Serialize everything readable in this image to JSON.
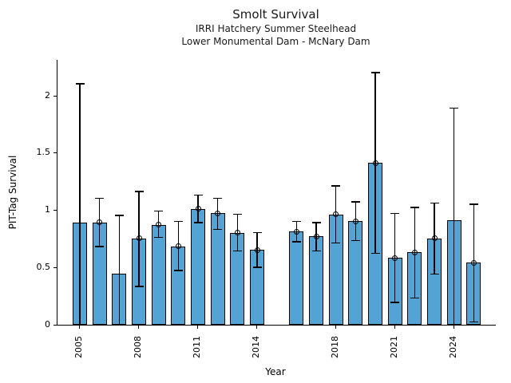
{
  "header": {
    "title": "Smolt Survival",
    "subtitle1": "IRRI Hatchery Summer Steelhead",
    "subtitle2": "Lower Monumental Dam - McNary Dam"
  },
  "chart_data": {
    "type": "bar",
    "title": "Smolt Survival",
    "subtitle": [
      "IRRI Hatchery Summer Steelhead",
      "Lower Monumental Dam - McNary Dam"
    ],
    "xlabel": "Year",
    "ylabel": "PIT-Tag Survival",
    "ylim": [
      0,
      2.31
    ],
    "xlim": [
      2003.9,
      2026.1
    ],
    "yticks": [
      0,
      0.5,
      1,
      1.5,
      2
    ],
    "ytick_labels": [
      "0",
      "0.5",
      "1",
      "1.5",
      "2"
    ],
    "xticks": [
      2005,
      2008,
      2011,
      2014,
      2018,
      2021,
      2024
    ],
    "grid": false,
    "legend": "none",
    "bar_color": "#54a3d5",
    "bar_edge_color": "#000000",
    "missing_years": [
      2015
    ],
    "series": [
      {
        "name": "PIT-Tag Survival",
        "points": [
          {
            "year": 2005,
            "value": 0.89,
            "err_low": 0.0,
            "err_high": 2.1,
            "marker": false
          },
          {
            "year": 2006,
            "value": 0.89,
            "err_low": 0.68,
            "err_high": 1.1,
            "marker": true
          },
          {
            "year": 2007,
            "value": 0.44,
            "err_low": 0.0,
            "err_high": 0.95,
            "marker": false
          },
          {
            "year": 2008,
            "value": 0.75,
            "err_low": 0.33,
            "err_high": 1.16,
            "marker": true
          },
          {
            "year": 2009,
            "value": 0.87,
            "err_low": 0.76,
            "err_high": 0.99,
            "marker": true
          },
          {
            "year": 2010,
            "value": 0.68,
            "err_low": 0.47,
            "err_high": 0.9,
            "marker": true
          },
          {
            "year": 2011,
            "value": 1.01,
            "err_low": 0.89,
            "err_high": 1.13,
            "marker": true
          },
          {
            "year": 2012,
            "value": 0.97,
            "err_low": 0.83,
            "err_high": 1.1,
            "marker": true
          },
          {
            "year": 2013,
            "value": 0.8,
            "err_low": 0.64,
            "err_high": 0.96,
            "marker": true
          },
          {
            "year": 2014,
            "value": 0.65,
            "err_low": 0.5,
            "err_high": 0.8,
            "marker": true
          },
          {
            "year": 2016,
            "value": 0.81,
            "err_low": 0.72,
            "err_high": 0.9,
            "marker": true
          },
          {
            "year": 2017,
            "value": 0.77,
            "err_low": 0.64,
            "err_high": 0.89,
            "marker": true
          },
          {
            "year": 2018,
            "value": 0.96,
            "err_low": 0.71,
            "err_high": 1.21,
            "marker": true
          },
          {
            "year": 2019,
            "value": 0.9,
            "err_low": 0.73,
            "err_high": 1.07,
            "marker": true
          },
          {
            "year": 2020,
            "value": 1.41,
            "err_low": 0.62,
            "err_high": 2.2,
            "marker": true
          },
          {
            "year": 2021,
            "value": 0.58,
            "err_low": 0.19,
            "err_high": 0.97,
            "marker": true
          },
          {
            "year": 2022,
            "value": 0.63,
            "err_low": 0.23,
            "err_high": 1.02,
            "marker": true
          },
          {
            "year": 2023,
            "value": 0.75,
            "err_low": 0.44,
            "err_high": 1.06,
            "marker": true
          },
          {
            "year": 2024,
            "value": 0.91,
            "err_low": 0.0,
            "err_high": 1.89,
            "marker": false
          },
          {
            "year": 2025,
            "value": 0.54,
            "err_low": 0.02,
            "err_high": 1.05,
            "marker": true
          }
        ]
      }
    ]
  }
}
